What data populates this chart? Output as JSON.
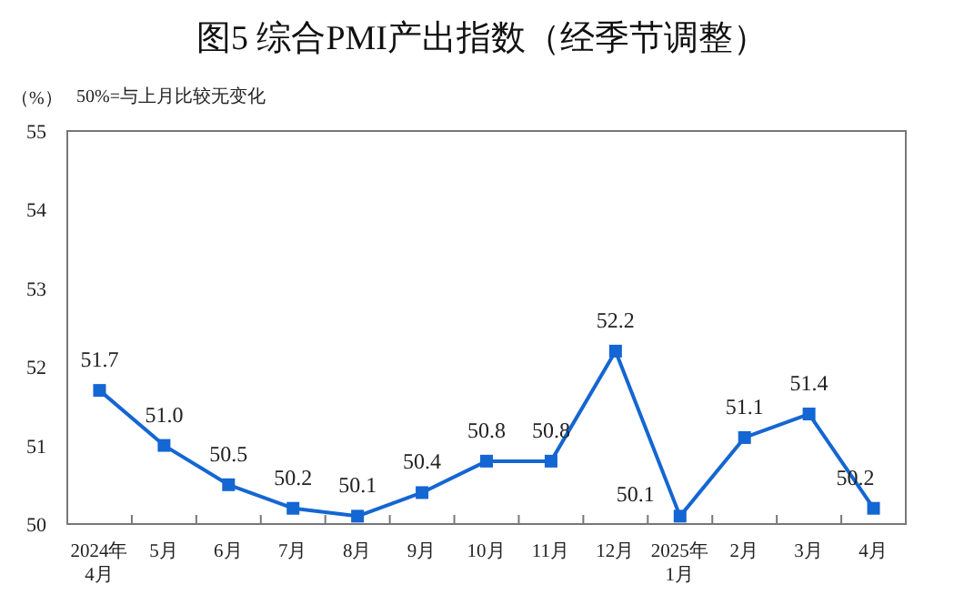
{
  "chart_data": {
    "type": "line",
    "title": "图5  综合PMI产出指数（经季节调整）",
    "ylabel": "（%）",
    "annotations": [
      "50%=与上月比较无变化"
    ],
    "categories": [
      "2024年4月",
      "5月",
      "6月",
      "7月",
      "8月",
      "9月",
      "10月",
      "11月",
      "12月",
      "2025年1月",
      "2月",
      "3月",
      "4月"
    ],
    "series": [
      {
        "color": "#1466d2",
        "values": [
          51.7,
          51.0,
          50.5,
          50.2,
          50.1,
          50.4,
          50.8,
          50.8,
          52.2,
          50.1,
          51.1,
          51.4,
          50.2
        ],
        "value_labels": [
          "51.7",
          "51.0",
          "50.5",
          "50.2",
          "50.1",
          "50.4",
          "50.8",
          "50.8",
          "52.2",
          "50.1",
          "51.1",
          "51.4",
          "50.2"
        ]
      }
    ],
    "ylim": [
      50,
      55
    ],
    "yticks": [
      50,
      51,
      52,
      53,
      54,
      55
    ],
    "marker": "square",
    "line_style": "solid",
    "grid": false
  }
}
